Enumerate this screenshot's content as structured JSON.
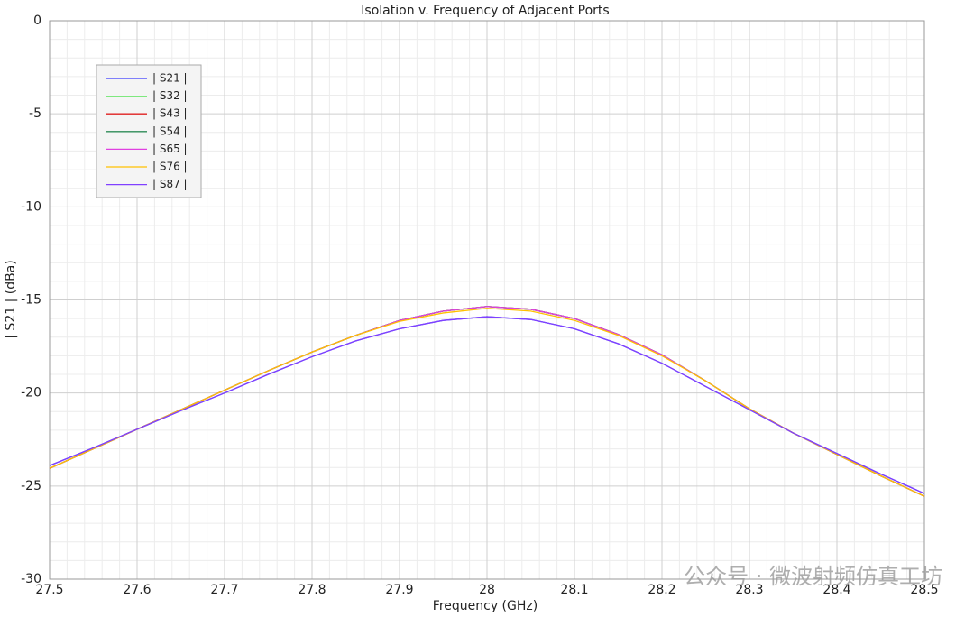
{
  "chart_data": {
    "type": "line",
    "title": "Isolation v. Frequency of Adjacent Ports",
    "x_label": "Frequency (GHz)",
    "y_label": "| S21 | (dBa)",
    "watermark": "公众号 · 微波射频仿真工坊",
    "x": [
      27.5,
      27.55,
      27.6,
      27.65,
      27.7,
      27.75,
      27.8,
      27.85,
      27.9,
      27.95,
      28.0,
      28.05,
      28.1,
      28.15,
      28.2,
      28.25,
      28.3,
      28.35,
      28.4,
      28.45,
      28.5
    ],
    "xlim": [
      27.5,
      28.5
    ],
    "xticks": [
      27.5,
      27.6,
      27.7,
      27.8,
      27.9,
      28,
      28.1,
      28.2,
      28.3,
      28.4,
      28.5
    ],
    "ylim": [
      -30,
      0
    ],
    "yticks": [
      -30,
      -25,
      -20,
      -15,
      -10,
      -5,
      0
    ],
    "grid": true,
    "minor_grid": true,
    "legend": "upper left",
    "series": [
      {
        "name": "| S21 |",
        "color": "#3b3bff",
        "values": [
          -23.9,
          -22.95,
          -21.95,
          -20.95,
          -20.0,
          -19.0,
          -18.05,
          -17.2,
          -16.55,
          -16.1,
          -15.9,
          -16.05,
          -16.55,
          -17.35,
          -18.4,
          -19.65,
          -20.9,
          -22.15,
          -23.25,
          -24.35,
          -25.4
        ]
      },
      {
        "name": "| S32 |",
        "color": "#7ee87e",
        "values": [
          -24.05,
          -23.0,
          -21.95,
          -20.9,
          -19.85,
          -18.8,
          -17.8,
          -16.9,
          -16.1,
          -15.6,
          -15.35,
          -15.5,
          -16.0,
          -16.85,
          -17.95,
          -19.35,
          -20.85,
          -22.15,
          -23.3,
          -24.45,
          -25.55
        ]
      },
      {
        "name": "| S43 |",
        "color": "#e02020",
        "values": [
          -24.05,
          -23.0,
          -21.95,
          -20.9,
          -19.85,
          -18.8,
          -17.8,
          -16.9,
          -16.1,
          -15.6,
          -15.35,
          -15.5,
          -16.0,
          -16.85,
          -17.95,
          -19.35,
          -20.85,
          -22.15,
          -23.3,
          -24.45,
          -25.55
        ]
      },
      {
        "name": "| S54 |",
        "color": "#2e8b57",
        "values": [
          -24.05,
          -23.0,
          -21.95,
          -20.9,
          -19.85,
          -18.8,
          -17.8,
          -16.9,
          -16.1,
          -15.6,
          -15.35,
          -15.5,
          -16.0,
          -16.85,
          -17.95,
          -19.35,
          -20.85,
          -22.15,
          -23.3,
          -24.45,
          -25.55
        ]
      },
      {
        "name": "| S65 |",
        "color": "#e040e0",
        "values": [
          -24.05,
          -23.0,
          -21.95,
          -20.9,
          -19.85,
          -18.8,
          -17.8,
          -16.9,
          -16.1,
          -15.6,
          -15.35,
          -15.5,
          -16.0,
          -16.85,
          -17.95,
          -19.35,
          -20.85,
          -22.15,
          -23.3,
          -24.45,
          -25.55
        ]
      },
      {
        "name": "| S76 |",
        "color": "#ffc000",
        "values": [
          -24.05,
          -23.0,
          -21.95,
          -20.9,
          -19.85,
          -18.8,
          -17.8,
          -16.9,
          -16.15,
          -15.7,
          -15.45,
          -15.6,
          -16.1,
          -16.9,
          -18.0,
          -19.35,
          -20.85,
          -22.15,
          -23.3,
          -24.45,
          -25.55
        ]
      },
      {
        "name": "| S87 |",
        "color": "#8040ff",
        "values": [
          -23.9,
          -22.95,
          -21.95,
          -20.95,
          -20.0,
          -19.0,
          -18.05,
          -17.2,
          -16.55,
          -16.1,
          -15.9,
          -16.05,
          -16.55,
          -17.35,
          -18.4,
          -19.65,
          -20.9,
          -22.15,
          -23.25,
          -24.35,
          -25.4
        ]
      }
    ]
  }
}
